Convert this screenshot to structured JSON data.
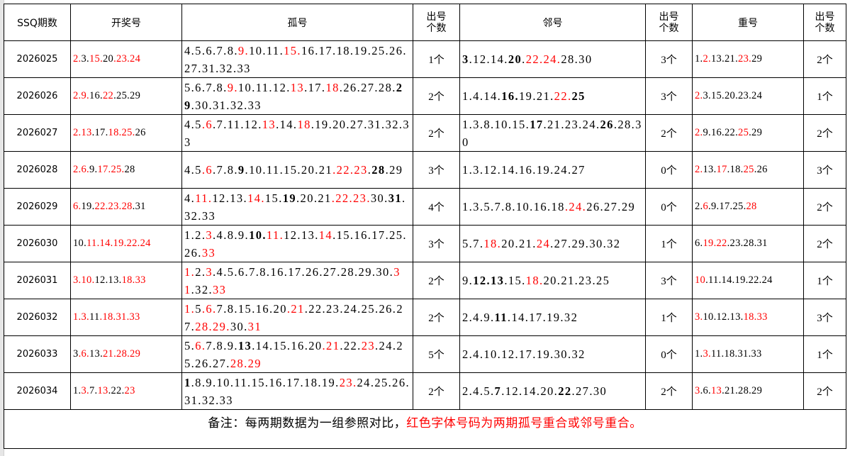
{
  "headers": [
    "SSQ期数",
    "开奖号",
    "孤号",
    "出号个数",
    "邻号",
    "出号个数",
    "重号",
    "出号个数"
  ],
  "header_two_line": [
    [
      "出号",
      "个数"
    ],
    [
      "出号",
      "个数"
    ],
    [
      "出号",
      "个数"
    ]
  ],
  "colors": {
    "highlight": "#ff0000",
    "text": "#000000"
  },
  "rows": [
    {
      "period": "2026025",
      "draw": [
        [
          "2.",
          "r"
        ],
        [
          "3.",
          ""
        ],
        [
          "15.",
          "r"
        ],
        [
          "20",
          ""
        ],
        [
          ".23.24",
          "r"
        ]
      ],
      "isolated": [
        [
          "4.5.6.7.8.",
          ""
        ],
        [
          "9.",
          "r"
        ],
        [
          "10.11.",
          ""
        ],
        [
          "15.",
          "r"
        ],
        [
          "16.17.18.19.25.26.27.31.32.33",
          ""
        ]
      ],
      "isolated_count": "1个",
      "adjacent": [
        [
          "3",
          "b"
        ],
        [
          ".12.14.",
          ""
        ],
        [
          "20",
          "b"
        ],
        [
          ".",
          ""
        ],
        [
          "22.24.",
          "r"
        ],
        [
          "28.30",
          ""
        ]
      ],
      "adjacent_count": "3个",
      "repeat": [
        [
          "1.",
          ""
        ],
        [
          "2.",
          "r"
        ],
        [
          "13.21.",
          ""
        ],
        [
          "23.",
          "r"
        ],
        [
          "29",
          ""
        ]
      ],
      "repeat_count": "2个"
    },
    {
      "period": "2026026",
      "draw": [
        [
          "2.9.",
          "r"
        ],
        [
          "16.",
          ""
        ],
        [
          "22",
          "r"
        ],
        [
          ".25.29",
          ""
        ]
      ],
      "isolated": [
        [
          "5.6.7.8.",
          ""
        ],
        [
          "9.",
          "r"
        ],
        [
          "10.11.12.",
          ""
        ],
        [
          "13",
          "r"
        ],
        [
          ".17.",
          ""
        ],
        [
          "18",
          "r"
        ],
        [
          ".26.27.28.",
          ""
        ],
        [
          "29",
          "b"
        ],
        [
          ".30.31.32.33",
          ""
        ]
      ],
      "isolated_count": "2个",
      "adjacent": [
        [
          "1.4.14.",
          ""
        ],
        [
          "16.",
          "b"
        ],
        [
          "19.21.",
          ""
        ],
        [
          "22.",
          "r"
        ],
        [
          "25",
          "b"
        ]
      ],
      "adjacent_count": "3个",
      "repeat": [
        [
          "2.",
          "r"
        ],
        [
          "3.15.20.23.24",
          ""
        ]
      ],
      "repeat_count": "1个"
    },
    {
      "period": "2026027",
      "draw": [
        [
          "2.13",
          "r"
        ],
        [
          ".17.",
          ""
        ],
        [
          "18.25.",
          "r"
        ],
        [
          "26",
          ""
        ]
      ],
      "isolated": [
        [
          "4.5",
          ""
        ],
        [
          ".6",
          "r"
        ],
        [
          ".7.11.12.",
          ""
        ],
        [
          "13",
          "r"
        ],
        [
          ".14.",
          ""
        ],
        [
          "18",
          "r"
        ],
        [
          ".19.20.27.31.32.33",
          ""
        ]
      ],
      "isolated_count": "2个",
      "adjacent": [
        [
          "1.3.8.10.15.",
          ""
        ],
        [
          "17",
          "b"
        ],
        [
          ".21.23.24.",
          ""
        ],
        [
          "26",
          "b"
        ],
        [
          ".28.30",
          ""
        ]
      ],
      "adjacent_count": "2个",
      "repeat": [
        [
          "2.",
          "r"
        ],
        [
          "9.16.22.",
          ""
        ],
        [
          "25",
          "r"
        ],
        [
          ".29",
          ""
        ]
      ],
      "repeat_count": "2个"
    },
    {
      "period": "2026028",
      "draw": [
        [
          "2.6.",
          "r"
        ],
        [
          "9.",
          ""
        ],
        [
          "17.25.",
          "r"
        ],
        [
          "28",
          ""
        ]
      ],
      "isolated": [
        [
          "4.5",
          ""
        ],
        [
          ".6",
          "r"
        ],
        [
          ".7.8.",
          ""
        ],
        [
          "9",
          "b"
        ],
        [
          ".10.11.15.20.21",
          ""
        ],
        [
          ".22.23",
          "r"
        ],
        [
          ".",
          ""
        ],
        [
          "28",
          "b"
        ],
        [
          ".29",
          ""
        ]
      ],
      "isolated_count": "3个",
      "adjacent": [
        [
          "1.3.12.14.16.19.24.27",
          ""
        ]
      ],
      "adjacent_count": "0个",
      "repeat": [
        [
          "2.",
          "r"
        ],
        [
          "13.",
          ""
        ],
        [
          "17",
          "r"
        ],
        [
          ".18.",
          ""
        ],
        [
          "25",
          "r"
        ],
        [
          ".26",
          ""
        ]
      ],
      "repeat_count": "3个"
    },
    {
      "period": "2026029",
      "draw": [
        [
          "6.",
          "r"
        ],
        [
          "19.",
          ""
        ],
        [
          "22.23.28",
          "r"
        ],
        [
          ".31",
          ""
        ]
      ],
      "isolated": [
        [
          "4.",
          ""
        ],
        [
          "11.",
          "r"
        ],
        [
          "12.13.",
          ""
        ],
        [
          "14.",
          "r"
        ],
        [
          "15.",
          ""
        ],
        [
          "19",
          "b"
        ],
        [
          ".20.21",
          ""
        ],
        [
          ".22.23.",
          "r"
        ],
        [
          "30.",
          ""
        ],
        [
          "31",
          "b"
        ],
        [
          ".32.33",
          ""
        ]
      ],
      "isolated_count": "4个",
      "adjacent": [
        [
          "1.3.5.7.8.10.16.18",
          ""
        ],
        [
          ".24.",
          "r"
        ],
        [
          "26.27.29",
          ""
        ]
      ],
      "adjacent_count": "0个",
      "repeat": [
        [
          "2.",
          ""
        ],
        [
          "6",
          "r"
        ],
        [
          ".9.17.25.",
          ""
        ],
        [
          "28",
          "r"
        ]
      ],
      "repeat_count": "2个"
    },
    {
      "period": "2026030",
      "draw": [
        [
          "10.",
          ""
        ],
        [
          "11.14.19.22.24",
          "r"
        ]
      ],
      "isolated": [
        [
          "1.2.",
          ""
        ],
        [
          "3",
          "r"
        ],
        [
          ".4.8.9.",
          ""
        ],
        [
          "10.",
          "b"
        ],
        [
          "11.",
          "r"
        ],
        [
          "12.13.",
          ""
        ],
        [
          "14",
          "r"
        ],
        [
          ".15.16.17.25.26.",
          ""
        ],
        [
          "33",
          "r"
        ]
      ],
      "isolated_count": "3个",
      "adjacent": [
        [
          "5.7.",
          ""
        ],
        [
          "18.",
          "r"
        ],
        [
          "20.21.",
          ""
        ],
        [
          "24",
          "r"
        ],
        [
          ".27.29.30.32",
          ""
        ]
      ],
      "adjacent_count": "1个",
      "repeat": [
        [
          "6.",
          ""
        ],
        [
          "19.22",
          "r"
        ],
        [
          ".23.28.31",
          ""
        ]
      ],
      "repeat_count": "2个"
    },
    {
      "period": "2026031",
      "draw": [
        [
          "3.10.",
          "r"
        ],
        [
          "12.13.",
          ""
        ],
        [
          "18.33",
          "r"
        ]
      ],
      "isolated": [
        [
          "1.",
          "r"
        ],
        [
          "2.",
          ""
        ],
        [
          "3",
          "r"
        ],
        [
          ".4.5.6.7.8.16.17.26.27.28.29.30.",
          ""
        ],
        [
          "31",
          "r"
        ],
        [
          ".32.",
          ""
        ],
        [
          "33",
          "r"
        ]
      ],
      "isolated_count": "2个",
      "adjacent": [
        [
          "9.",
          ""
        ],
        [
          "12.13",
          "b"
        ],
        [
          ".15.",
          ""
        ],
        [
          "18.",
          "r"
        ],
        [
          "20.21.23.25",
          ""
        ]
      ],
      "adjacent_count": "3个",
      "repeat": [
        [
          "10",
          "r"
        ],
        [
          ".11.14.19.22.24",
          ""
        ]
      ],
      "repeat_count": "1个"
    },
    {
      "period": "2026032",
      "draw": [
        [
          "1.3.",
          "r"
        ],
        [
          "11",
          ""
        ],
        [
          ".18.31.33",
          "r"
        ]
      ],
      "isolated": [
        [
          "1.",
          "r"
        ],
        [
          "5",
          ""
        ],
        [
          ".6.",
          "r"
        ],
        [
          "7.8.15.16.20",
          ""
        ],
        [
          ".21",
          "r"
        ],
        [
          ".22.23.24.25.26.27.",
          ""
        ],
        [
          "28.29.",
          "r"
        ],
        [
          "30.",
          ""
        ],
        [
          "31",
          "r"
        ]
      ],
      "isolated_count": "2个",
      "adjacent": [
        [
          "2.4.9.",
          ""
        ],
        [
          "11",
          "b"
        ],
        [
          ".14.17.19.32",
          ""
        ]
      ],
      "adjacent_count": "1个",
      "repeat": [
        [
          "3.",
          "r"
        ],
        [
          "10.12.13.",
          ""
        ],
        [
          "18.33",
          "r"
        ]
      ],
      "repeat_count": "3个"
    },
    {
      "period": "2026033",
      "draw": [
        [
          "3",
          ""
        ],
        [
          ".6.",
          "r"
        ],
        [
          "13.",
          ""
        ],
        [
          "21.28.29",
          "r"
        ]
      ],
      "isolated": [
        [
          "5.",
          ""
        ],
        [
          "6.",
          "r"
        ],
        [
          "7.8.9.",
          ""
        ],
        [
          "13",
          "b"
        ],
        [
          ".14.15.16.20",
          ""
        ],
        [
          ".21",
          "r"
        ],
        [
          ".22.",
          ""
        ],
        [
          "23",
          "r"
        ],
        [
          ".24.25.26.27.",
          ""
        ],
        [
          "28.29",
          "r"
        ]
      ],
      "isolated_count": "5个",
      "adjacent": [
        [
          "2.4.10.12.17.19.30.32",
          ""
        ]
      ],
      "adjacent_count": "0个",
      "repeat": [
        [
          "1.",
          ""
        ],
        [
          "3.",
          "r"
        ],
        [
          "11.18.31.33",
          ""
        ]
      ],
      "repeat_count": "1个"
    },
    {
      "period": "2026034",
      "draw": [
        [
          "1.",
          ""
        ],
        [
          "3.",
          "r"
        ],
        [
          "7.",
          ""
        ],
        [
          "13",
          "r"
        ],
        [
          ".22.",
          ""
        ],
        [
          "23",
          "r"
        ]
      ],
      "isolated": [
        [
          "1",
          "b"
        ],
        [
          ".8.9.10.11.15.16.17.18.19.",
          ""
        ],
        [
          "23.",
          "r"
        ],
        [
          "24.25.26.31.32.33",
          ""
        ]
      ],
      "isolated_count": "2个",
      "adjacent": [
        [
          "2.4.5.",
          ""
        ],
        [
          "7",
          "b"
        ],
        [
          ".12.14.20.",
          ""
        ],
        [
          "22",
          "b"
        ],
        [
          ".27.30",
          ""
        ]
      ],
      "adjacent_count": "2个",
      "repeat": [
        [
          "3",
          "r"
        ],
        [
          ".6.",
          ""
        ],
        [
          "13",
          "r"
        ],
        [
          ".21.28.29",
          ""
        ]
      ],
      "repeat_count": "2个"
    }
  ],
  "footer": {
    "note_black": "备注：每两期数据为一组参照对比，",
    "note_red": "红色字体号码为两期孤号重合或邻号重合。"
  }
}
